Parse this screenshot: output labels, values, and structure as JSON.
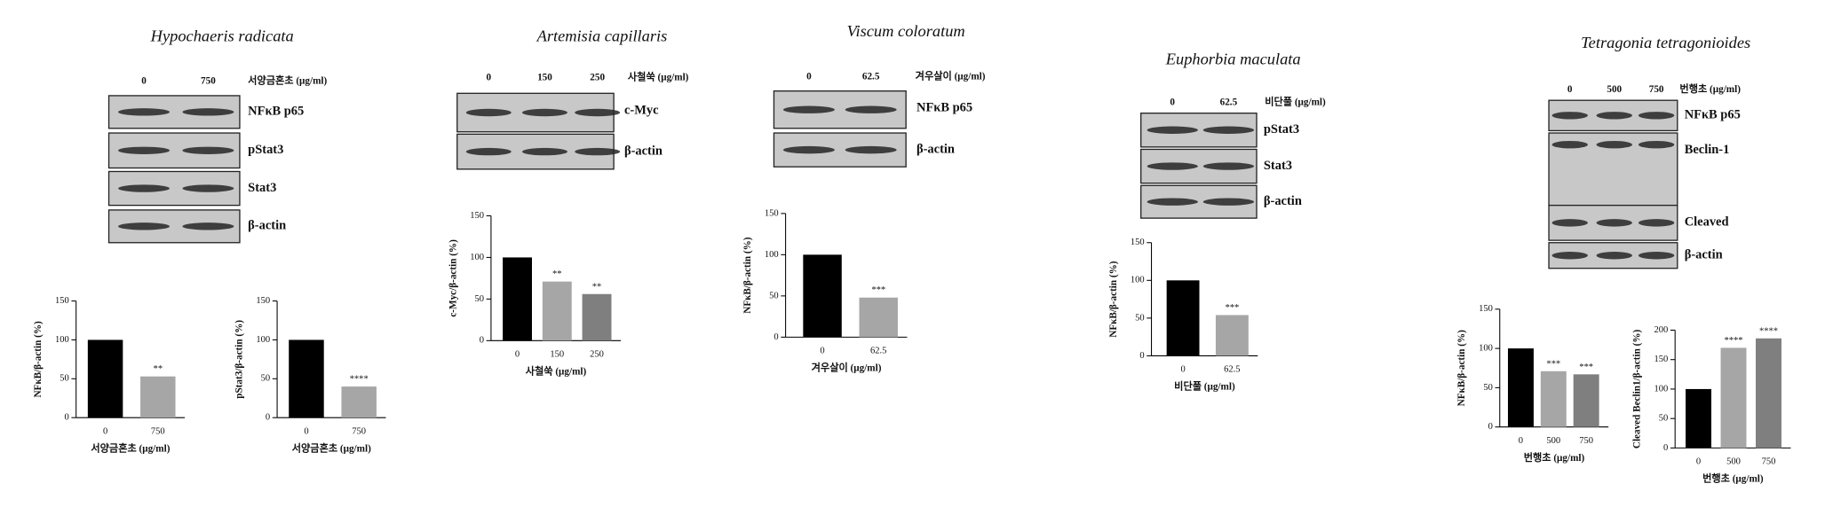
{
  "panels": [
    {
      "title": "Hypochaeris radicata",
      "doses": [
        "0",
        "750"
      ],
      "unit": "서양금혼초 (μg/ml)",
      "blots": [
        "NFκB p65",
        "pStat3",
        "Stat3",
        "β-actin"
      ]
    },
    {
      "title": "Artemisia capillaris",
      "doses": [
        "0",
        "150",
        "250"
      ],
      "unit": "사철쑥 (μg/ml)",
      "blots": [
        "c-Myc",
        "β-actin"
      ]
    },
    {
      "title": "Viscum coloratum",
      "doses": [
        "0",
        "62.5"
      ],
      "unit": "겨우살이 (μg/ml)",
      "blots": [
        "NFκB p65",
        "β-actin"
      ]
    },
    {
      "title": "Euphorbia maculata",
      "doses": [
        "0",
        "62.5"
      ],
      "unit": "비단풀 (μg/ml)",
      "blots": [
        "pStat3",
        "Stat3",
        "β-actin"
      ]
    },
    {
      "title": "Tetragonia tetragonioides",
      "doses": [
        "0",
        "500",
        "750"
      ],
      "unit": "번행초 (μg/ml)",
      "blots": [
        "NFκB p65",
        "Beclin-1",
        "Cleaved",
        "β-actin"
      ]
    }
  ],
  "chart_data": [
    {
      "type": "bar",
      "ylabel": "NFκB/β-actin (%)",
      "xlabel": "서양금혼초 (μg/ml)",
      "categories": [
        "0",
        "750"
      ],
      "values": [
        100,
        53
      ],
      "annotations": [
        null,
        "**"
      ],
      "colors": [
        "#000000",
        "#a6a6a6"
      ],
      "ylim": [
        0,
        150
      ],
      "yticks": [
        0,
        50,
        100,
        150
      ]
    },
    {
      "type": "bar",
      "ylabel": "pStat3/β-actin (%)",
      "xlabel": "서양금혼초 (μg/ml)",
      "categories": [
        "0",
        "750"
      ],
      "values": [
        100,
        40
      ],
      "annotations": [
        null,
        "****"
      ],
      "colors": [
        "#000000",
        "#a6a6a6"
      ],
      "ylim": [
        0,
        150
      ],
      "yticks": [
        0,
        50,
        100,
        150
      ]
    },
    {
      "type": "bar",
      "ylabel": "c-Myc/β-actin (%)",
      "xlabel": "사철쑥 (μg/ml)",
      "categories": [
        "0",
        "150",
        "250"
      ],
      "values": [
        100,
        71,
        56
      ],
      "annotations": [
        null,
        "**",
        "**"
      ],
      "colors": [
        "#000000",
        "#a6a6a6",
        "#7f7f7f"
      ],
      "ylim": [
        0,
        150
      ],
      "yticks": [
        0,
        50,
        100,
        150
      ]
    },
    {
      "type": "bar",
      "ylabel": "NFκB/β-actin (%)",
      "xlabel": "겨우살이 (μg/ml)",
      "categories": [
        "0",
        "62.5"
      ],
      "values": [
        100,
        48
      ],
      "annotations": [
        null,
        "***"
      ],
      "colors": [
        "#000000",
        "#a6a6a6"
      ],
      "ylim": [
        0,
        150
      ],
      "yticks": [
        0,
        50,
        100,
        150
      ]
    },
    {
      "type": "bar",
      "ylabel": "NFκB/β-actin (%)",
      "xlabel": "비단풀 (μg/ml)",
      "categories": [
        "0",
        "62.5"
      ],
      "values": [
        100,
        54
      ],
      "annotations": [
        null,
        "***"
      ],
      "colors": [
        "#000000",
        "#a6a6a6"
      ],
      "ylim": [
        0,
        150
      ],
      "yticks": [
        0,
        50,
        100,
        150
      ]
    },
    {
      "type": "bar",
      "ylabel": "NFκB/β-actin (%)",
      "xlabel": "번행초 (μg/ml)",
      "categories": [
        "0",
        "500",
        "750"
      ],
      "values": [
        100,
        71,
        67
      ],
      "annotations": [
        null,
        "***",
        "***"
      ],
      "colors": [
        "#000000",
        "#a6a6a6",
        "#7f7f7f"
      ],
      "ylim": [
        0,
        150
      ],
      "yticks": [
        0,
        50,
        100,
        150
      ]
    },
    {
      "type": "bar",
      "ylabel": "Cleaved Beclin1/β-actin (%)",
      "xlabel": "번행초 (μg/ml)",
      "categories": [
        "0",
        "500",
        "750"
      ],
      "values": [
        100,
        170,
        186
      ],
      "annotations": [
        null,
        "****",
        "****"
      ],
      "colors": [
        "#000000",
        "#a6a6a6",
        "#7f7f7f"
      ],
      "ylim": [
        0,
        200
      ],
      "yticks": [
        0,
        50,
        100,
        150,
        200
      ]
    }
  ]
}
